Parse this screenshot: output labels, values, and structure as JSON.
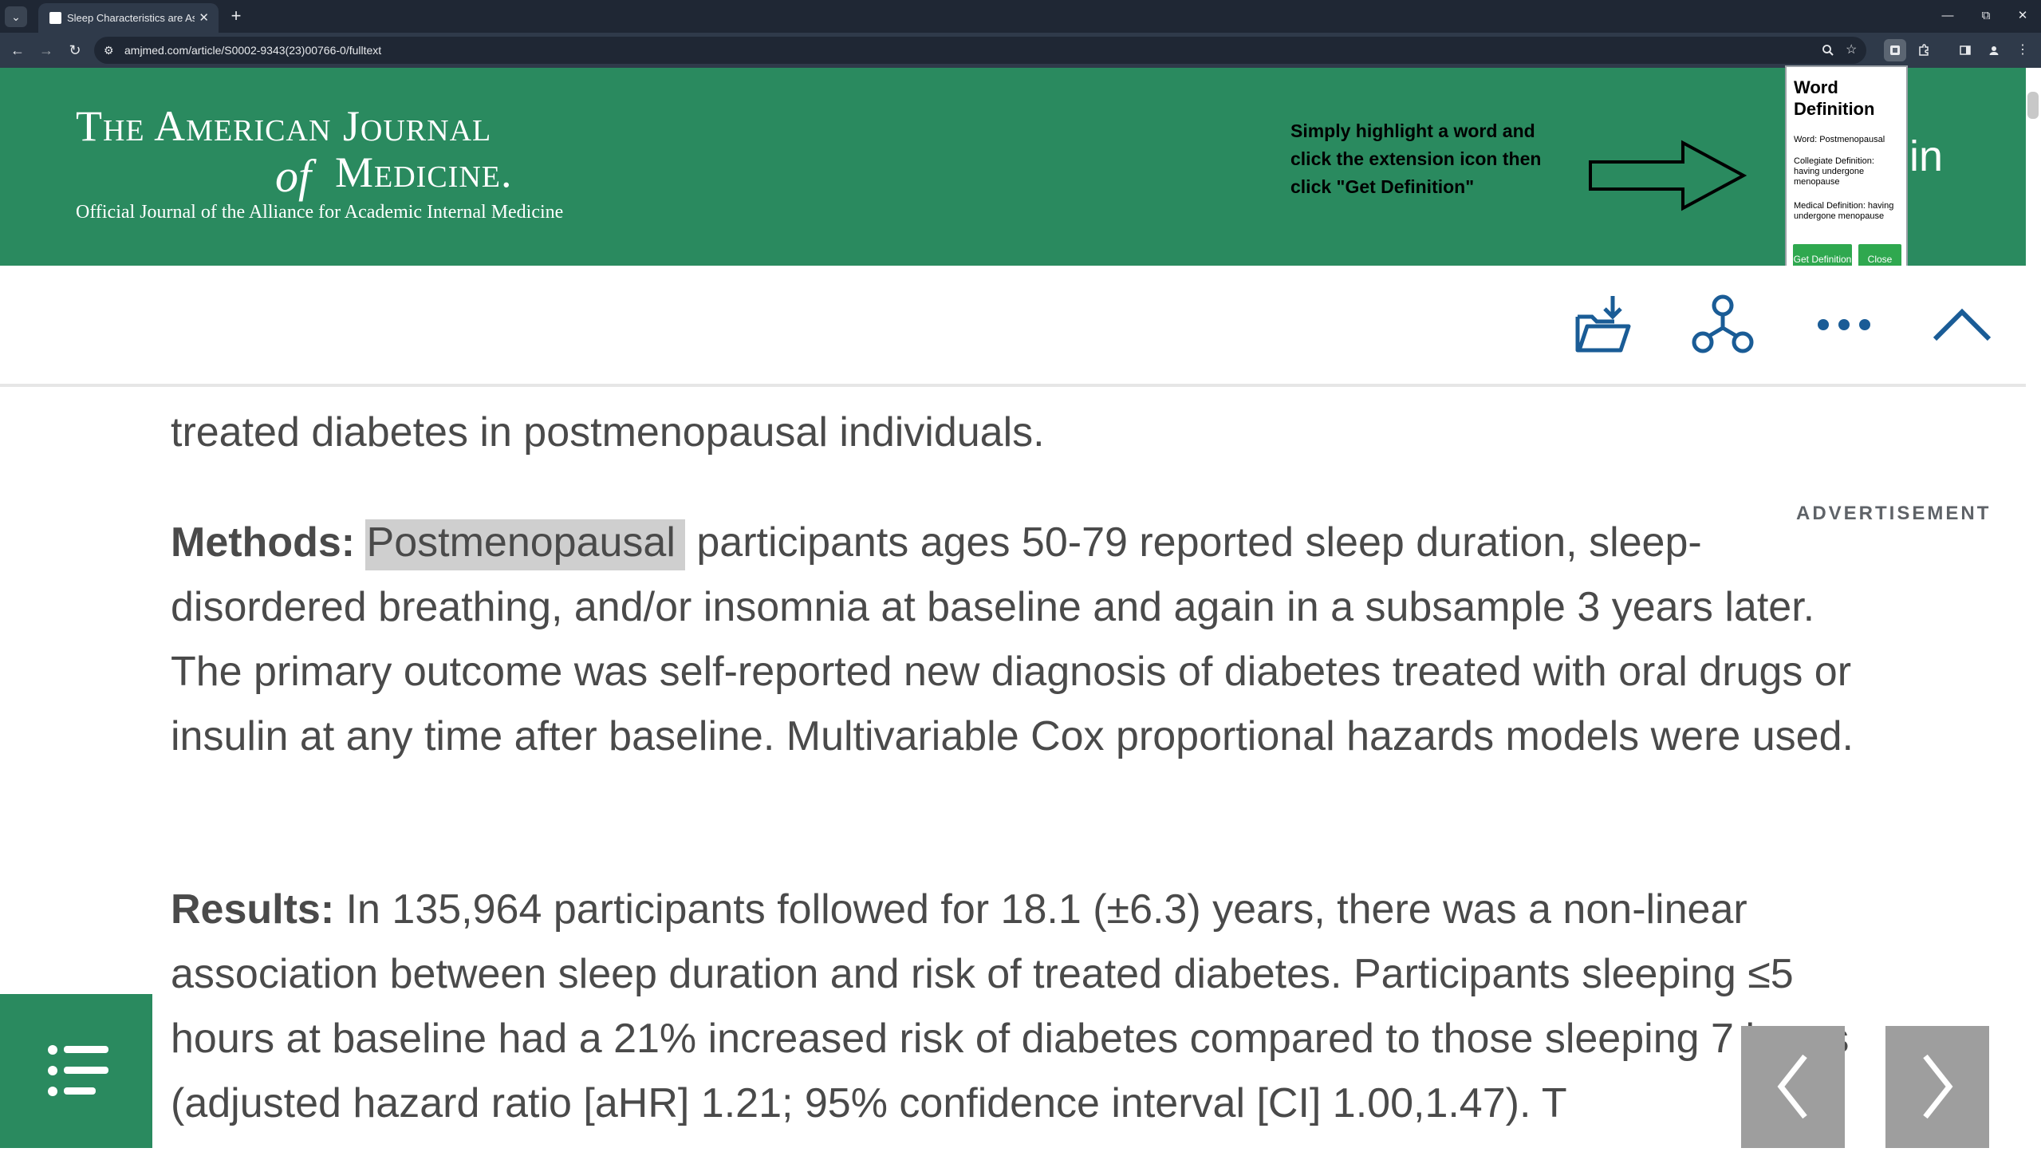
{
  "browser": {
    "tab_dropdown": "⌄",
    "tab_title": "Sleep Characteristics are Associ",
    "tab_close": "✕",
    "new_tab": "+",
    "window_minimize": "—",
    "window_restore": "⧉",
    "window_close": "✕",
    "back": "←",
    "forward": "→",
    "reload": "↻",
    "site_settings": "⚙",
    "url": "amjmed.com/article/S0002-9343(23)00766-0/fulltext",
    "icons": [
      "zoom-icon",
      "bookmark-star-icon",
      "extension-define-icon",
      "extensions-puzzle-icon",
      "side-panel-icon",
      "profile-icon",
      "menu-icon"
    ]
  },
  "banner": {
    "title_line1": "The American Journal",
    "title_of": "of",
    "title_line2": "Medicine.",
    "subtitle": "Official Journal of the Alliance for Academic Internal Medicine",
    "extension_hint": "Simply highlight a word and click the extension icon then click \"Get Definition\"",
    "signin_fragment": "in",
    "color": "#2a8a5f"
  },
  "popup": {
    "title": "Word Definition",
    "word_line": "Word: Postmenopausal",
    "collegiate_line": "Collegiate Definition: having undergone menopause",
    "medical_line": "Medical Definition: having undergone menopause",
    "get_definition": "Get Definition",
    "close": "Close",
    "button_color": "#2fa84f"
  },
  "article_toolbar": {
    "icons": [
      "download-folder-icon",
      "share-icon",
      "more-icon",
      "collapse-up-icon"
    ],
    "icon_color": "#1a5c96"
  },
  "article": {
    "lead_fragment": "treated diabetes in postmenopausal individuals.",
    "methods_label": "Methods:",
    "methods_highlight": "Postmenopausal",
    "methods_text": " participants ages 50-79 reported sleep duration, sleep-disordered breathing, and/or insomnia at baseline and again in a subsample 3 years later. The primary outcome was self-reported new diagnosis of diabetes treated with oral drugs or insulin at any time after baseline. Multivariable Cox proportional hazards models were used.",
    "results_label": "Results:",
    "results_text": " In 135,964 participants followed for 18.1 (±6.3) years, there was a non-linear association between sleep duration and risk of treated diabetes. Participants sleeping ≤5 hours at baseline had a 21% increased risk of diabetes compared to those sleeping 7 hours (adjusted hazard ratio [aHR] 1.21; 95% confidence interval [CI] 1.00,1.47). T",
    "advertisement_label": "ADVERTISEMENT"
  },
  "floating": {
    "toc_icon": "list-icon",
    "prev_icon": "chevron-left-icon",
    "next_icon": "chevron-right-icon"
  }
}
